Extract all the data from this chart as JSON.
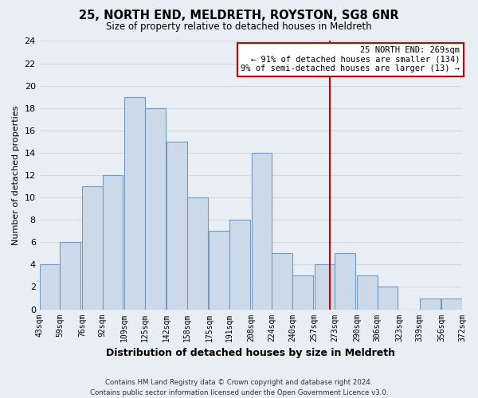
{
  "title": "25, NORTH END, MELDRETH, ROYSTON, SG8 6NR",
  "subtitle": "Size of property relative to detached houses in Meldreth",
  "xlabel": "Distribution of detached houses by size in Meldreth",
  "ylabel": "Number of detached properties",
  "bar_left_edges": [
    43,
    59,
    76,
    92,
    109,
    125,
    142,
    158,
    175,
    191,
    208,
    224,
    240,
    257,
    273,
    290,
    306,
    323,
    339,
    356
  ],
  "bar_heights": [
    4,
    6,
    11,
    12,
    19,
    18,
    15,
    10,
    7,
    8,
    14,
    5,
    3,
    4,
    5,
    3,
    2,
    0,
    1,
    1
  ],
  "bin_width": 16,
  "tick_labels": [
    "43sqm",
    "59sqm",
    "76sqm",
    "92sqm",
    "109sqm",
    "125sqm",
    "142sqm",
    "158sqm",
    "175sqm",
    "191sqm",
    "208sqm",
    "224sqm",
    "240sqm",
    "257sqm",
    "273sqm",
    "290sqm",
    "306sqm",
    "323sqm",
    "339sqm",
    "356sqm",
    "372sqm"
  ],
  "bar_color": "#ccd9e8",
  "bar_edge_color": "#7799bb",
  "grid_color": "#d0d8e0",
  "vline_x": 269,
  "vline_color": "#cc0000",
  "ylim": [
    0,
    24
  ],
  "yticks": [
    0,
    2,
    4,
    6,
    8,
    10,
    12,
    14,
    16,
    18,
    20,
    22,
    24
  ],
  "annotation_title": "25 NORTH END: 269sqm",
  "annotation_line1": "← 91% of detached houses are smaller (134)",
  "annotation_line2": "9% of semi-detached houses are larger (13) →",
  "footer_line1": "Contains HM Land Registry data © Crown copyright and database right 2024.",
  "footer_line2": "Contains public sector information licensed under the Open Government Licence v3.0.",
  "background_color": "#e8eef4"
}
